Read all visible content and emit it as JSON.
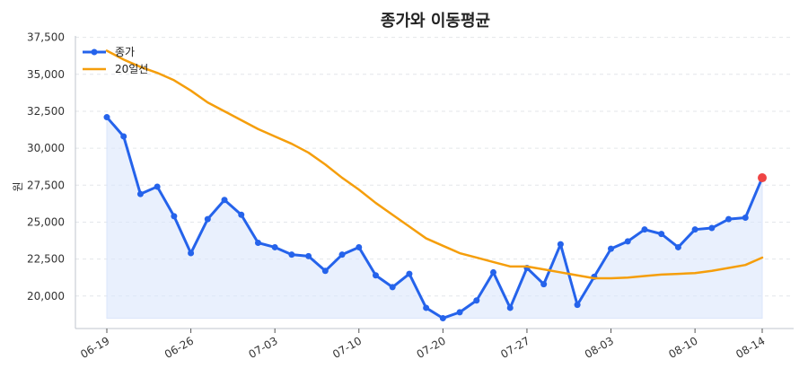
{
  "chart_data": {
    "type": "line",
    "title": "종가와 이동평균",
    "ylabel": "원",
    "xlabel": "",
    "ylim": [
      17800,
      37600
    ],
    "yticks": [
      20000,
      22500,
      25000,
      27500,
      30000,
      32500,
      35000,
      37500
    ],
    "ytick_labels": [
      "20,000",
      "22,500",
      "25,000",
      "27,500",
      "30,000",
      "32,500",
      "35,000",
      "37,500"
    ],
    "x_index_range": [
      0,
      39
    ],
    "xticks": [
      {
        "index": 0,
        "label": "06-19"
      },
      {
        "index": 5,
        "label": "06-26"
      },
      {
        "index": 10,
        "label": "07-03"
      },
      {
        "index": 15,
        "label": "07-10"
      },
      {
        "index": 20,
        "label": "07-20"
      },
      {
        "index": 25,
        "label": "07-27"
      },
      {
        "index": 30,
        "label": "08-03"
      },
      {
        "index": 35,
        "label": "08-10"
      },
      {
        "index": 39,
        "label": "08-14"
      }
    ],
    "grid": true,
    "legend": "top-left",
    "series": [
      {
        "name": "종가",
        "color": "#2563eb",
        "marker": true,
        "fill": true,
        "fill_color": "#dbe6fb",
        "values": [
          32100,
          30800,
          26900,
          27400,
          25400,
          22900,
          25200,
          26500,
          25500,
          23600,
          23300,
          22800,
          22700,
          21700,
          22800,
          23300,
          21400,
          20600,
          21500,
          19200,
          18500,
          18900,
          19700,
          21600,
          19200,
          21900,
          20800,
          23500,
          19400,
          21300,
          23200,
          23700,
          24500,
          24200,
          23300,
          24500,
          24600,
          25200,
          25300,
          28000
        ]
      },
      {
        "name": "20일선",
        "color": "#f59e0b",
        "marker": false,
        "values": [
          36600,
          36000,
          35500,
          35100,
          34600,
          33900,
          33100,
          32500,
          31900,
          31300,
          30800,
          30300,
          29700,
          28900,
          28000,
          27200,
          26300,
          25500,
          24700,
          23900,
          23400,
          22900,
          22600,
          22300,
          22000,
          22000,
          21800,
          21600,
          21400,
          21200,
          21200,
          21250,
          21350,
          21450,
          21500,
          21550,
          21700,
          21900,
          22100,
          22600
        ]
      }
    ],
    "highlight_last_point": {
      "color": "#ef4444"
    }
  }
}
